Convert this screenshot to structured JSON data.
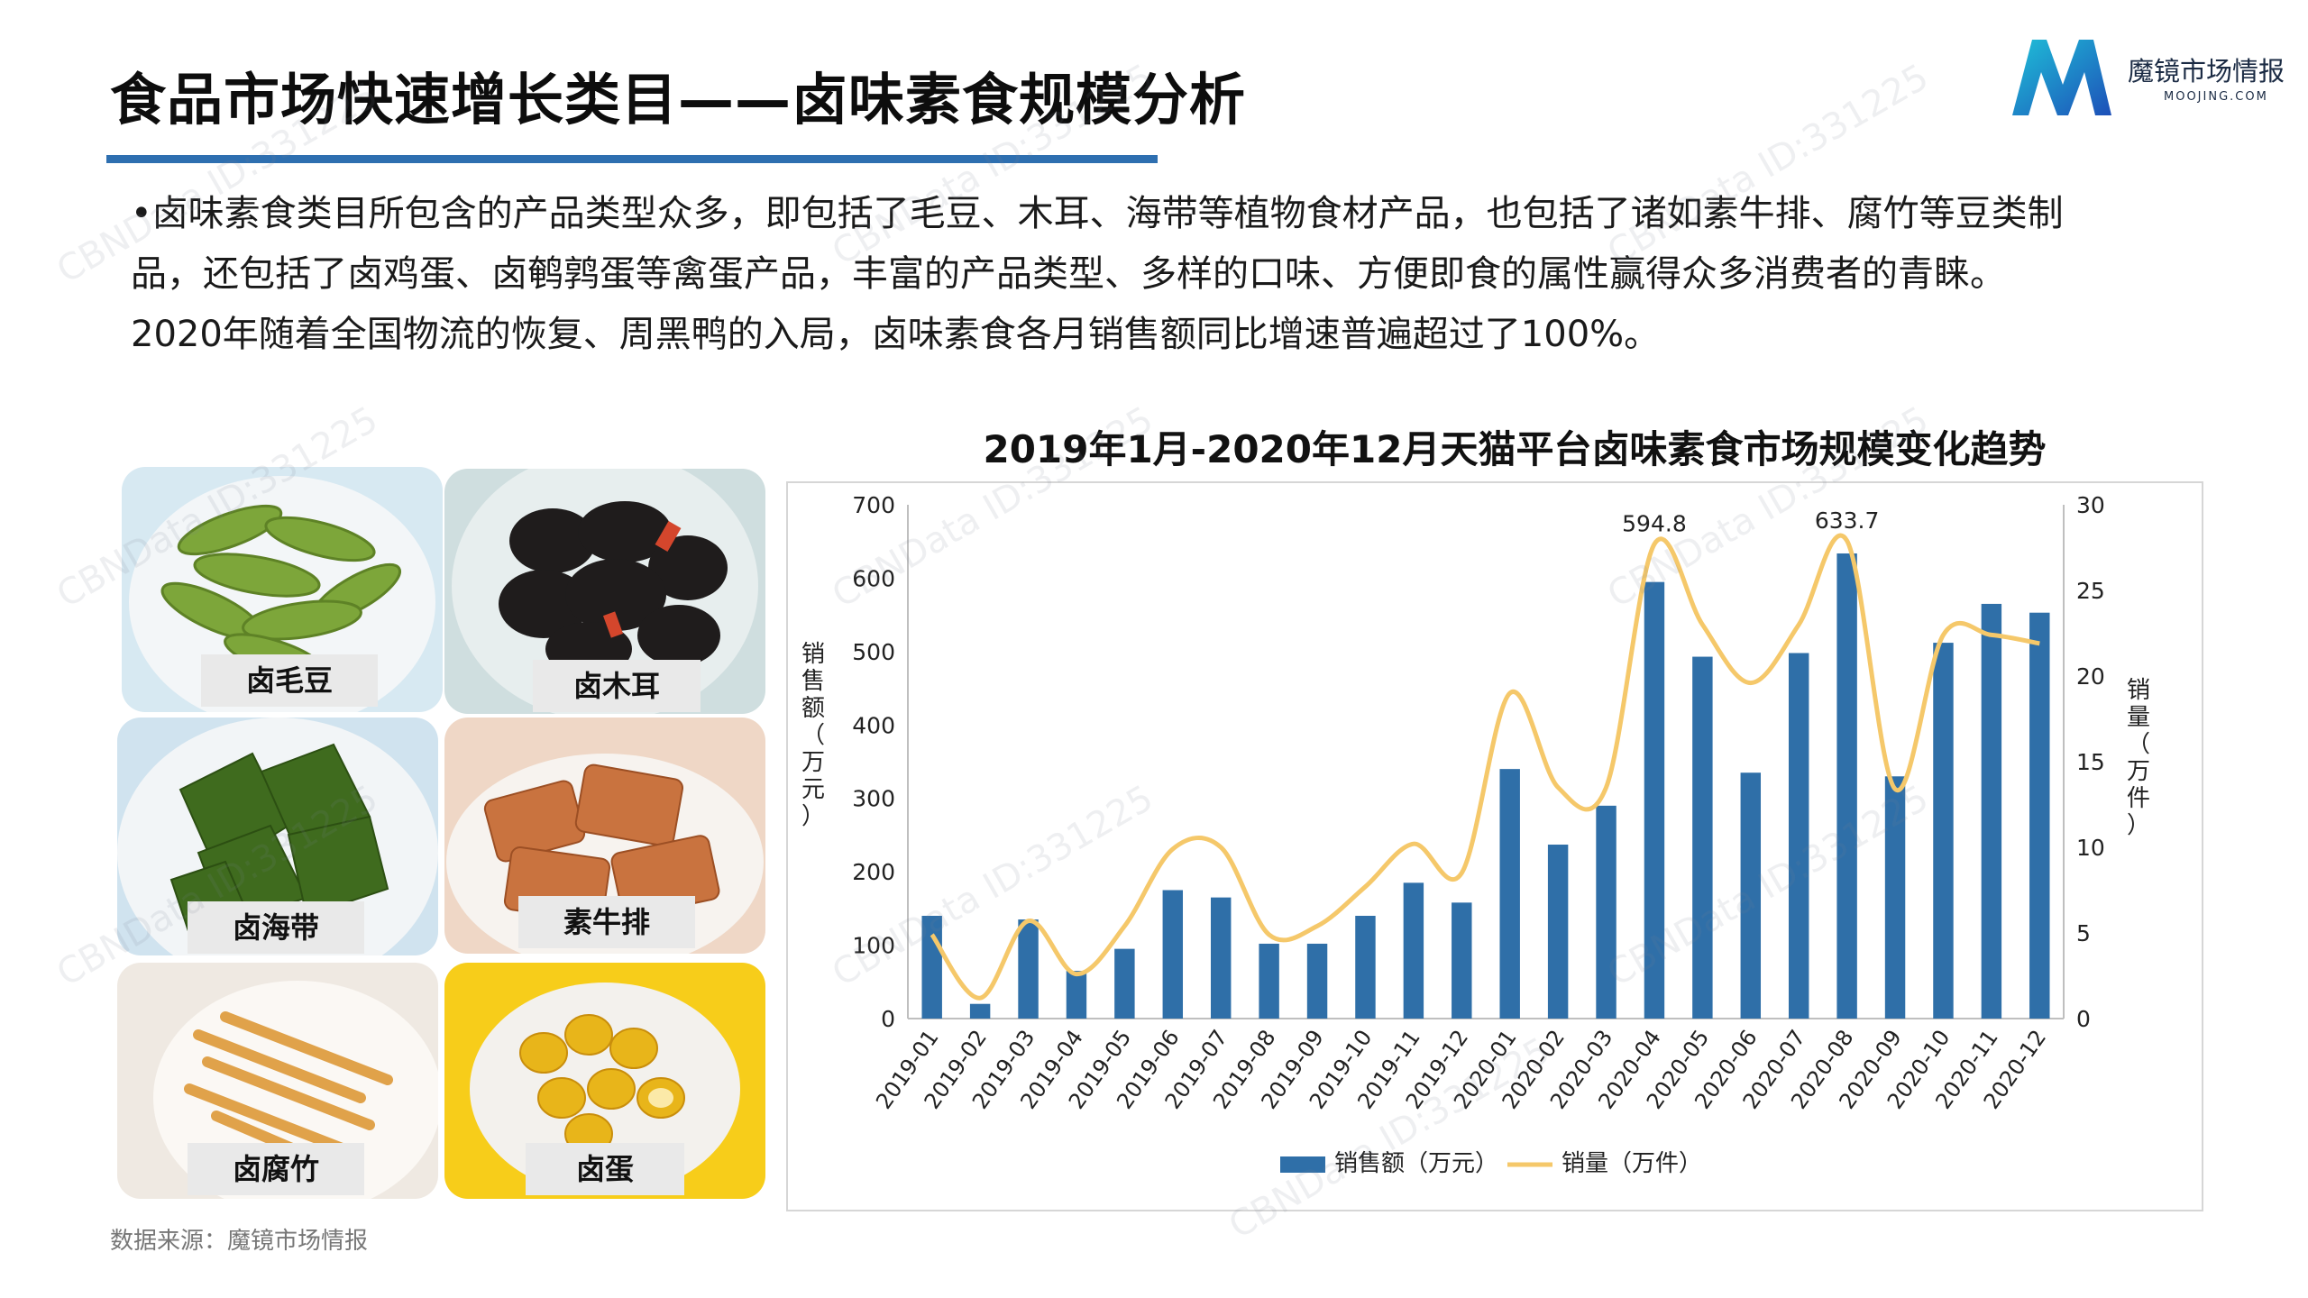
{
  "title": "食品市场快速增长类目——卤味素食规模分析",
  "logo": {
    "name": "魔镜市场情报",
    "sub": "MOOJING.COM"
  },
  "paragraph": [
    "•卤味素食类目所包含的产品类型众多，即包括了毛豆、木耳、海带等植物食材产品，也包括了诸如素牛排、腐竹等豆类制",
    "品，还包括了卤鸡蛋、卤鹌鹑蛋等禽蛋产品，丰富的产品类型、多样的口味、方便即食的属性赢得众多消费者的青睐。",
    "2020年随着全国物流的恢复、周黑鸭的入局，卤味素食各月销售额同比增速普遍超过了100%。"
  ],
  "photos": [
    {
      "label": "卤毛豆",
      "icon": "edamame-image"
    },
    {
      "label": "卤木耳",
      "icon": "wood-ear-image"
    },
    {
      "label": "卤海带",
      "icon": "kelp-image"
    },
    {
      "label": "素牛排",
      "icon": "veg-steak-image"
    },
    {
      "label": "卤腐竹",
      "icon": "tofu-skin-image"
    },
    {
      "label": "卤蛋",
      "icon": "egg-image"
    }
  ],
  "source": "数据来源：魔镜市场情报",
  "watermark": "CBNData ID:331225",
  "colors": {
    "bar": "#2f6fa8",
    "line": "#f5c86a",
    "accent": "#2e6fb0"
  },
  "chart_data": {
    "type": "bar",
    "title": "2019年1月-2020年12月天猫平台卤味素食市场规模变化趋势",
    "categories": [
      "2019-01",
      "2019-02",
      "2019-03",
      "2019-04",
      "2019-05",
      "2019-06",
      "2019-07",
      "2019-08",
      "2019-09",
      "2019-10",
      "2019-11",
      "2019-12",
      "2020-01",
      "2020-02",
      "2020-03",
      "2020-04",
      "2020-05",
      "2020-06",
      "2020-07",
      "2020-08",
      "2020-09",
      "2020-10",
      "2020-11",
      "2020-12"
    ],
    "series": [
      {
        "name": "销售额（万元）",
        "type": "bar",
        "axis": "left",
        "values": [
          140,
          20,
          135,
          65,
          95,
          175,
          165,
          102,
          102,
          140,
          185,
          158,
          340,
          237,
          290,
          594.8,
          493,
          335,
          498,
          633.7,
          330,
          512,
          565,
          553
        ]
      },
      {
        "name": "销量（万件）",
        "type": "line",
        "axis": "right",
        "values": [
          4.9,
          1.2,
          5.7,
          2.6,
          5.4,
          9.9,
          10.0,
          4.9,
          5.4,
          7.7,
          10.2,
          8.5,
          19.0,
          13.5,
          13.5,
          27.7,
          23.0,
          19.6,
          23.0,
          27.9,
          13.4,
          22.4,
          22.4,
          21.9
        ]
      }
    ],
    "annotations": [
      {
        "category": "2020-04",
        "label": "594.8"
      },
      {
        "category": "2020-08",
        "label": "633.7"
      }
    ],
    "ylabel": "销售额（万元）",
    "y2label": "销量（万件）",
    "ylim": [
      0,
      700
    ],
    "y2lim": [
      0,
      30
    ],
    "yticks": [
      0,
      100,
      200,
      300,
      400,
      500,
      600,
      700
    ],
    "y2ticks": [
      0,
      5,
      10,
      15,
      20,
      25,
      30
    ],
    "grid": false,
    "legend": "bottom-center"
  }
}
